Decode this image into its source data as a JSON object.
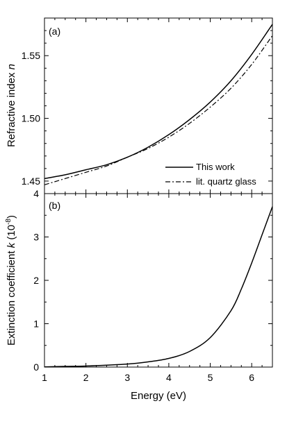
{
  "chart_data": [
    {
      "panel_label": "(a)",
      "type": "line",
      "ylabel_main": "Refractive index ",
      "ylabel_italic": "n",
      "ylim": [
        1.44,
        1.58
      ],
      "yticks": [
        1.45,
        1.5,
        1.55
      ],
      "ytick_labels": [
        "1.45",
        "1.50",
        "1.55"
      ],
      "xlim": [
        1,
        6.5
      ],
      "legend_position": "bottom-right",
      "series": [
        {
          "name": "This work",
          "style": "solid",
          "x": [
            1.0,
            1.5,
            2.0,
            2.5,
            3.0,
            3.5,
            4.0,
            4.5,
            5.0,
            5.5,
            6.0,
            6.5
          ],
          "y": [
            1.452,
            1.455,
            1.459,
            1.463,
            1.469,
            1.477,
            1.487,
            1.499,
            1.513,
            1.53,
            1.551,
            1.575
          ]
        },
        {
          "name": "lit. quartz glass",
          "style": "dashdot",
          "x": [
            1.0,
            1.5,
            2.0,
            2.5,
            3.0,
            3.5,
            4.0,
            4.5,
            5.0,
            5.5,
            6.0,
            6.5
          ],
          "y": [
            1.447,
            1.452,
            1.457,
            1.462,
            1.469,
            1.476,
            1.485,
            1.496,
            1.509,
            1.524,
            1.543,
            1.566
          ]
        }
      ]
    },
    {
      "panel_label": "(b)",
      "type": "line",
      "ylabel_main": "Extinction coefficient ",
      "ylabel_italic": "k",
      "ylabel_unit_prefix": " (10",
      "ylabel_unit_exp": "-8",
      "ylabel_unit_suffix": ")",
      "ylim": [
        0,
        4
      ],
      "yticks": [
        0,
        1,
        2,
        3,
        4
      ],
      "ytick_labels": [
        "0",
        "1",
        "2",
        "3",
        "4"
      ],
      "xlim": [
        1,
        6.5
      ],
      "xticks": [
        1,
        2,
        3,
        4,
        5,
        6
      ],
      "xtick_labels": [
        "1",
        "2",
        "3",
        "4",
        "5",
        "6"
      ],
      "xlabel": "Energy (eV)",
      "series": [
        {
          "style": "solid",
          "x": [
            1.0,
            1.5,
            2.0,
            2.5,
            3.0,
            3.5,
            4.0,
            4.5,
            5.0,
            5.5,
            5.75,
            6.0,
            6.25,
            6.5
          ],
          "y": [
            0.005,
            0.015,
            0.025,
            0.045,
            0.07,
            0.12,
            0.2,
            0.36,
            0.68,
            1.3,
            1.8,
            2.4,
            3.05,
            3.7
          ]
        }
      ]
    }
  ]
}
